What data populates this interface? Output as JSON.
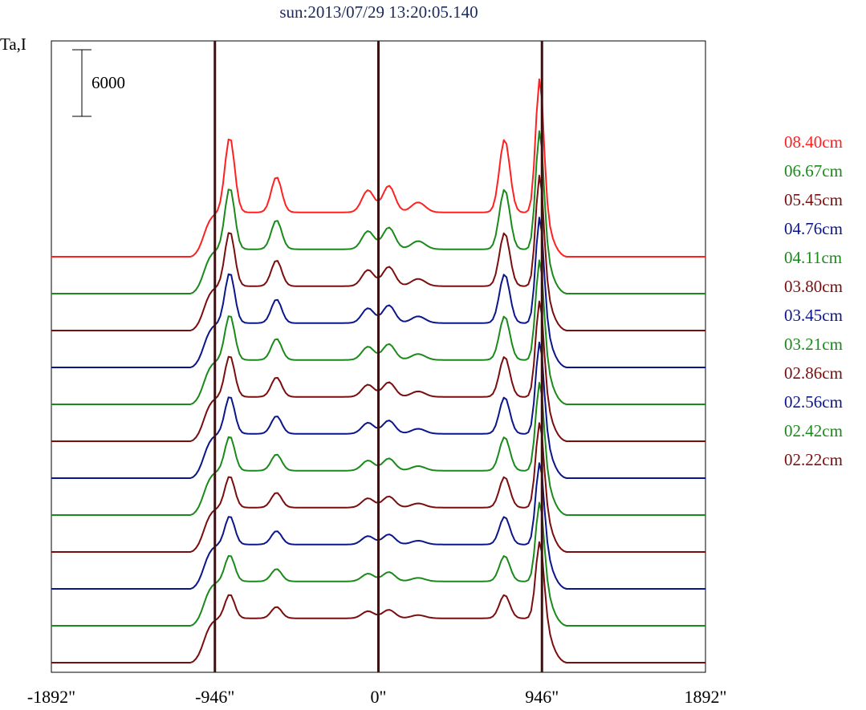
{
  "title": "sun:2013/07/29 13:20:05.140",
  "ylabel": "Ta,I",
  "scale_bar_label": "6000",
  "chart_data": {
    "type": "line",
    "title": "sun:2013/07/29 13:20:05.140",
    "xlabel": "",
    "ylabel": "Ta,I",
    "x_unit": "arcsec",
    "xlim": [
      -1892,
      1892
    ],
    "x_ticks": [
      -1892,
      -946,
      0,
      946,
      1892
    ],
    "x_tick_labels": [
      "-1892\"",
      "-946\"",
      "0\"",
      "946\"",
      "1892\""
    ],
    "vertical_lines_x": [
      -946,
      0,
      946
    ],
    "scale_bar_value": 6000,
    "y_grid": false,
    "legend_position": "right",
    "colors": {
      "red": "#ff2020",
      "green": "#1a8a1a",
      "maroon": "#7a0e0e",
      "navy": "#0b168a",
      "axis": "#000000",
      "marker": "#3a1212",
      "title": "#1a2a5a"
    },
    "series": [
      {
        "name": "08.40cm",
        "color": "#ff2020",
        "offset": 0,
        "peak_scale": 1.0
      },
      {
        "name": "06.67cm",
        "color": "#1a8a1a",
        "offset": 1,
        "peak_scale": 0.82
      },
      {
        "name": "05.45cm",
        "color": "#7a0e0e",
        "offset": 2,
        "peak_scale": 0.73
      },
      {
        "name": "04.76cm",
        "color": "#0b168a",
        "offset": 3,
        "peak_scale": 0.67
      },
      {
        "name": "04.11cm",
        "color": "#1a8a1a",
        "offset": 4,
        "peak_scale": 0.6
      },
      {
        "name": "03.80cm",
        "color": "#7a0e0e",
        "offset": 5,
        "peak_scale": 0.55
      },
      {
        "name": "03.45cm",
        "color": "#0b168a",
        "offset": 6,
        "peak_scale": 0.5
      },
      {
        "name": "03.21cm",
        "color": "#1a8a1a",
        "offset": 7,
        "peak_scale": 0.46
      },
      {
        "name": "02.86cm",
        "color": "#7a0e0e",
        "offset": 8,
        "peak_scale": 0.42
      },
      {
        "name": "02.56cm",
        "color": "#0b168a",
        "offset": 9,
        "peak_scale": 0.38
      },
      {
        "name": "02.42cm",
        "color": "#1a8a1a",
        "offset": 10,
        "peak_scale": 0.35
      },
      {
        "name": "02.22cm",
        "color": "#7a0e0e",
        "offset": 11,
        "peak_scale": 0.32
      }
    ]
  }
}
